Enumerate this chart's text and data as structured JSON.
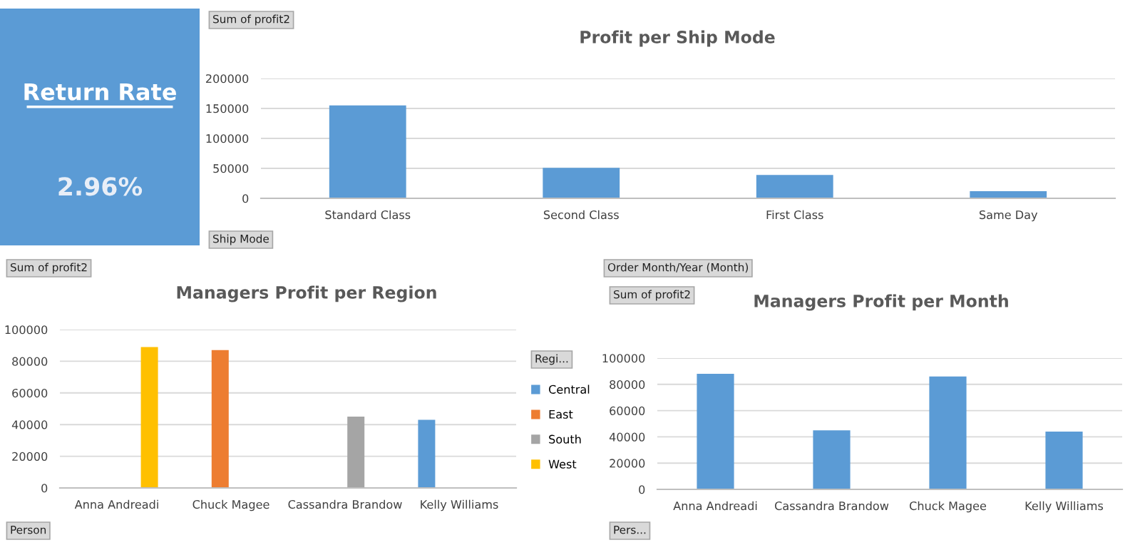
{
  "chart_data": [
    {
      "type": "other",
      "title": "Return Rate",
      "annotations": [
        "2.96%"
      ],
      "color": "#5b9bd5"
    },
    {
      "type": "bar",
      "title": "Profit per Ship Mode",
      "categories": [
        "Standard Class",
        "Second Class",
        "First Class",
        "Same Day"
      ],
      "values": [
        155000,
        51000,
        39000,
        12000
      ],
      "color": "#5b9bd5",
      "ylim": [
        0,
        200000
      ],
      "yticks": [
        0,
        50000,
        100000,
        150000,
        200000
      ],
      "grid": "y",
      "legend": false,
      "annotations": [
        "Sum of profit2",
        "Ship Mode"
      ]
    },
    {
      "type": "bar",
      "title": "Managers Profit per Region",
      "categories": [
        "Anna Andreadi",
        "Chuck Magee",
        "Cassandra Brandow",
        "Kelly Williams"
      ],
      "legend_title": "Regi...",
      "legend": "right",
      "series": [
        {
          "name": "Central",
          "color": "#5b9bd5",
          "values": [
            null,
            null,
            null,
            43000
          ]
        },
        {
          "name": "East",
          "color": "#ed7d31",
          "values": [
            null,
            87000,
            null,
            null
          ]
        },
        {
          "name": "South",
          "color": "#a5a5a5",
          "values": [
            null,
            null,
            45000,
            null
          ]
        },
        {
          "name": "West",
          "color": "#ffc000",
          "values": [
            89000,
            null,
            null,
            null
          ]
        }
      ],
      "ylim": [
        0,
        100000
      ],
      "yticks": [
        0,
        20000,
        40000,
        60000,
        80000,
        100000
      ],
      "grid": "y",
      "annotations": [
        "Sum of profit2",
        "Person"
      ]
    },
    {
      "type": "bar",
      "title": "Managers Profit per Month",
      "categories": [
        "Anna Andreadi",
        "Cassandra Brandow",
        "Chuck Magee",
        "Kelly Williams"
      ],
      "values": [
        88000,
        45000,
        86000,
        44000
      ],
      "color": "#5b9bd5",
      "ylim": [
        0,
        100000
      ],
      "yticks": [
        0,
        20000,
        40000,
        60000,
        80000,
        100000
      ],
      "grid": "y",
      "legend": false,
      "annotations": [
        "Order Month/Year (Month)",
        "Sum of profit2",
        "Pers..."
      ]
    }
  ]
}
